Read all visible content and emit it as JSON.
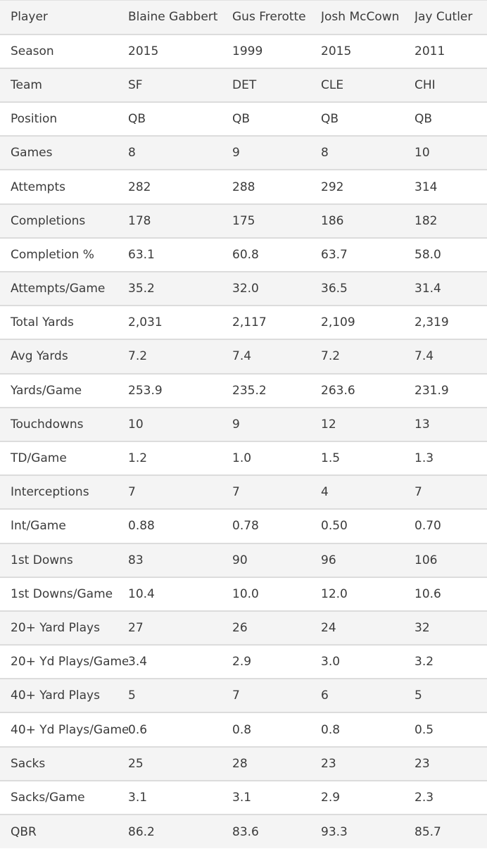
{
  "table": {
    "rows": [
      {
        "label": "Player",
        "values": [
          "Blaine Gabbert",
          "Gus Frerotte",
          "Josh McCown",
          "Jay Cutler"
        ]
      },
      {
        "label": "Season",
        "values": [
          "2015",
          "1999",
          "2015",
          "2011"
        ]
      },
      {
        "label": "Team",
        "values": [
          "SF",
          "DET",
          "CLE",
          "CHI"
        ]
      },
      {
        "label": "Position",
        "values": [
          "QB",
          "QB",
          "QB",
          "QB"
        ]
      },
      {
        "label": "Games",
        "values": [
          "8",
          "9",
          "8",
          "10"
        ]
      },
      {
        "label": "Attempts",
        "values": [
          "282",
          "288",
          "292",
          "314"
        ]
      },
      {
        "label": "Completions",
        "values": [
          "178",
          "175",
          "186",
          "182"
        ]
      },
      {
        "label": "Completion %",
        "values": [
          "63.1",
          "60.8",
          "63.7",
          "58.0"
        ]
      },
      {
        "label": "Attempts/Game",
        "values": [
          "35.2",
          "32.0",
          "36.5",
          "31.4"
        ]
      },
      {
        "label": "Total Yards",
        "values": [
          "2,031",
          "2,117",
          "2,109",
          "2,319"
        ]
      },
      {
        "label": "Avg Yards",
        "values": [
          "7.2",
          "7.4",
          "7.2",
          "7.4"
        ]
      },
      {
        "label": "Yards/Game",
        "values": [
          "253.9",
          "235.2",
          "263.6",
          "231.9"
        ]
      },
      {
        "label": "Touchdowns",
        "values": [
          "10",
          "9",
          "12",
          "13"
        ]
      },
      {
        "label": "TD/Game",
        "values": [
          "1.2",
          "1.0",
          "1.5",
          "1.3"
        ]
      },
      {
        "label": "Interceptions",
        "values": [
          "7",
          "7",
          "4",
          "7"
        ]
      },
      {
        "label": "Int/Game",
        "values": [
          "0.88",
          "0.78",
          "0.50",
          "0.70"
        ]
      },
      {
        "label": "1st Downs",
        "values": [
          "83",
          "90",
          "96",
          "106"
        ]
      },
      {
        "label": "1st Downs/Game",
        "values": [
          "10.4",
          "10.0",
          "12.0",
          "10.6"
        ]
      },
      {
        "label": "20+ Yard Plays",
        "values": [
          "27",
          "26",
          "24",
          "32"
        ]
      },
      {
        "label": "20+ Yd Plays/Game",
        "values": [
          "3.4",
          "2.9",
          "3.0",
          "3.2"
        ]
      },
      {
        "label": "40+ Yard Plays",
        "values": [
          "5",
          "7",
          "6",
          "5"
        ]
      },
      {
        "label": "40+ Yd Plays/Game",
        "values": [
          "0.6",
          "0.8",
          "0.8",
          "0.5"
        ]
      },
      {
        "label": "Sacks",
        "values": [
          "25",
          "28",
          "23",
          "23"
        ]
      },
      {
        "label": "Sacks/Game",
        "values": [
          "3.1",
          "3.1",
          "2.9",
          "2.3"
        ]
      },
      {
        "label": "QBR",
        "values": [
          "86.2",
          "83.6",
          "93.3",
          "85.7"
        ]
      }
    ]
  }
}
